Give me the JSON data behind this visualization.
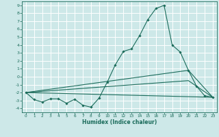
{
  "xlabel": "Humidex (Indice chaleur)",
  "xlim": [
    -0.5,
    23.5
  ],
  "ylim": [
    -4.5,
    9.5
  ],
  "xticks": [
    0,
    1,
    2,
    3,
    4,
    5,
    6,
    7,
    8,
    9,
    10,
    11,
    12,
    13,
    14,
    15,
    16,
    17,
    18,
    19,
    20,
    21,
    22,
    23
  ],
  "yticks": [
    -4,
    -3,
    -2,
    -1,
    0,
    1,
    2,
    3,
    4,
    5,
    6,
    7,
    8,
    9
  ],
  "background_color": "#cde8e8",
  "grid_color": "#ffffff",
  "line_color": "#1a6b5a",
  "series": [
    {
      "x": [
        0,
        1,
        2,
        3,
        4,
        5,
        6,
        7,
        8,
        9,
        10,
        11,
        12,
        13,
        14,
        15,
        16,
        17,
        18,
        19,
        20,
        21,
        22,
        23
      ],
      "y": [
        -2.0,
        -2.9,
        -3.2,
        -2.8,
        -2.8,
        -3.35,
        -2.85,
        -3.6,
        -3.85,
        -2.7,
        -0.7,
        1.5,
        3.2,
        3.5,
        5.2,
        7.2,
        8.6,
        9.0,
        4.0,
        3.1,
        0.8,
        -1.2,
        -2.4,
        -2.6
      ],
      "marker": true
    },
    {
      "x": [
        0,
        23
      ],
      "y": [
        -2.0,
        -2.6
      ],
      "marker": false
    },
    {
      "x": [
        0,
        20,
        23
      ],
      "y": [
        -2.0,
        -0.5,
        -2.6
      ],
      "marker": false
    },
    {
      "x": [
        0,
        20,
        23
      ],
      "y": [
        -2.0,
        0.8,
        -2.6
      ],
      "marker": false
    }
  ]
}
